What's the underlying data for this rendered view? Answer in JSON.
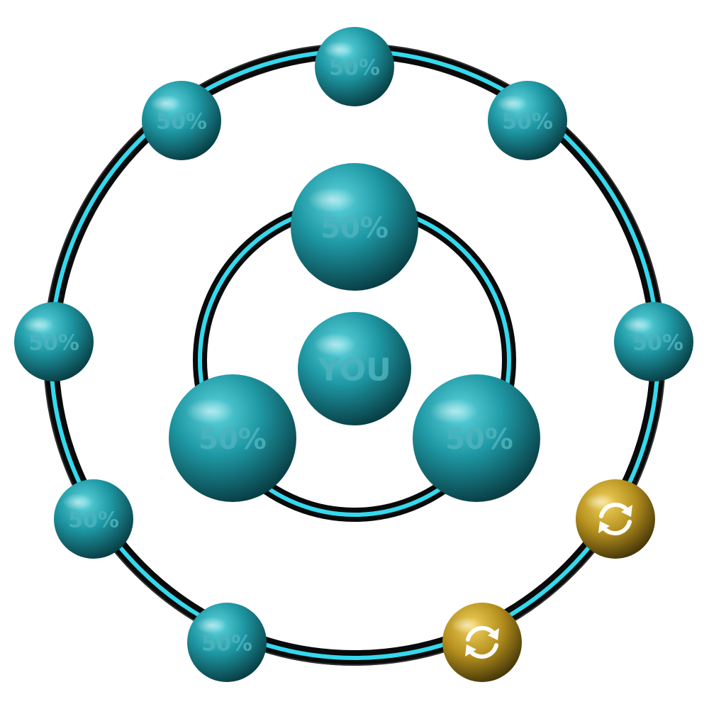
{
  "center": {
    "label": "YOU"
  },
  "inner_ring": {
    "nodes": [
      {
        "id": "inner-top",
        "label": "50%"
      },
      {
        "id": "inner-left",
        "label": "50%"
      },
      {
        "id": "inner-right",
        "label": "50%"
      }
    ]
  },
  "outer_ring": {
    "nodes": [
      {
        "id": "outer-top",
        "label": "50%"
      },
      {
        "id": "outer-top-right",
        "label": "50%"
      },
      {
        "id": "outer-right",
        "label": "50%"
      },
      {
        "id": "outer-lower-right",
        "icon": "refresh-icon",
        "state": "swap"
      },
      {
        "id": "outer-bottom-right",
        "icon": "refresh-icon",
        "state": "swap"
      },
      {
        "id": "outer-bottom-left",
        "label": "50%"
      },
      {
        "id": "outer-lower-left",
        "label": "50%"
      },
      {
        "id": "outer-left",
        "label": "50%"
      },
      {
        "id": "outer-top-left",
        "label": "50%"
      }
    ]
  },
  "colors": {
    "orb": "#1e98a4",
    "orb_label": "#4fb3bd",
    "ring_glow": "#35d8ec",
    "ring_dark": "#0a0a0a",
    "swap_orb": "#c9a227"
  }
}
